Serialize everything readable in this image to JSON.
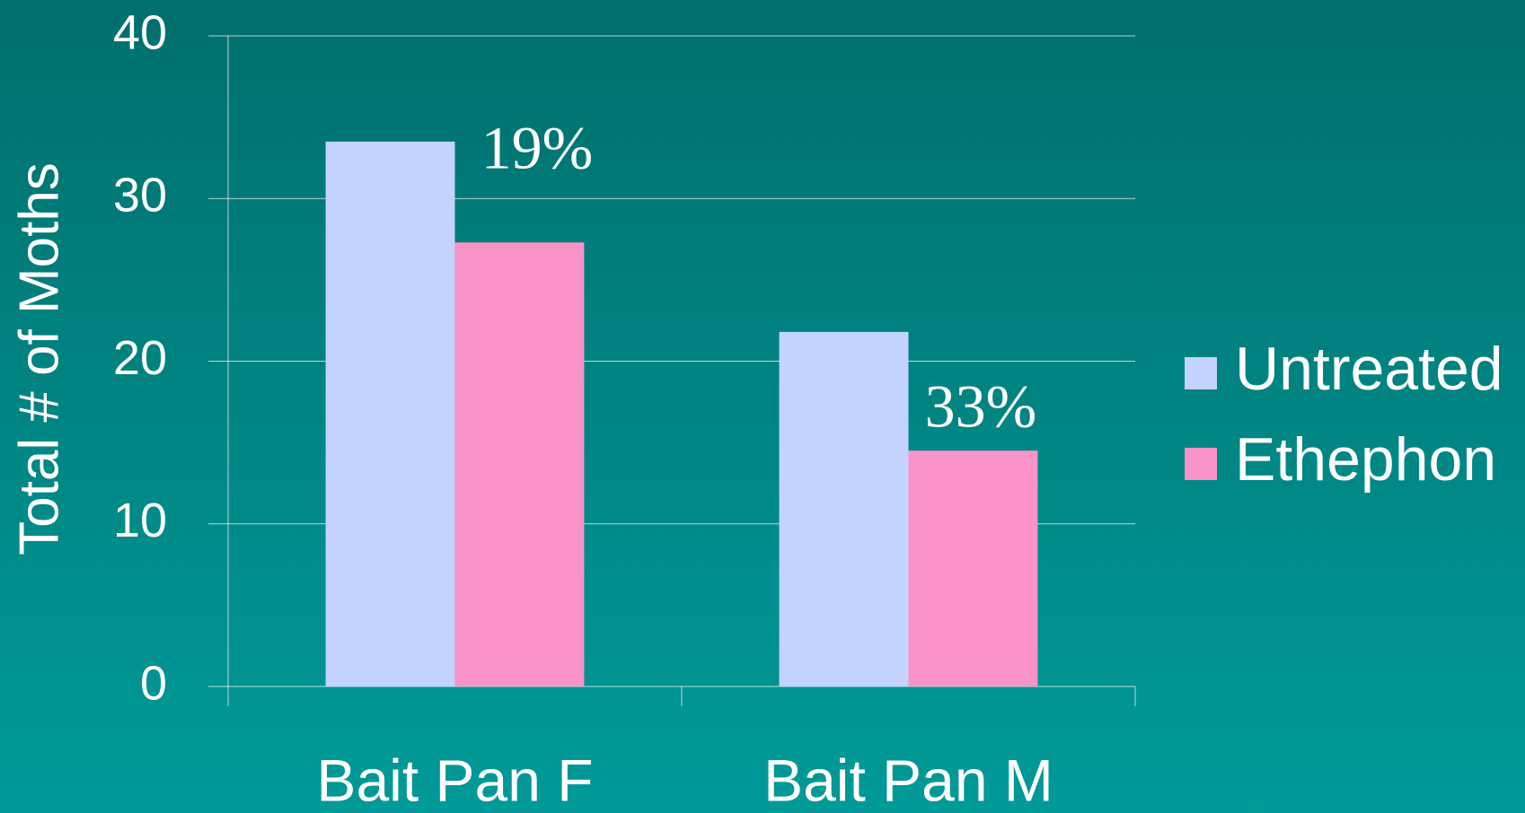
{
  "chart_data": {
    "type": "bar",
    "categories": [
      "Bait Pan F",
      "Bait Pan M"
    ],
    "series": [
      {
        "name": "Untreated",
        "color": "#c3d3fd",
        "values": [
          33.5,
          21.8
        ]
      },
      {
        "name": "Ethephon",
        "color": "#fa93c8",
        "values": [
          27.3,
          14.5
        ]
      }
    ],
    "y_label": "Total # of Moths",
    "annotations": [
      "19%",
      "33%"
    ],
    "ylim": [
      0,
      40
    ],
    "yticks": [
      0,
      10,
      20,
      30,
      40
    ],
    "grid": true,
    "legend": "right"
  }
}
